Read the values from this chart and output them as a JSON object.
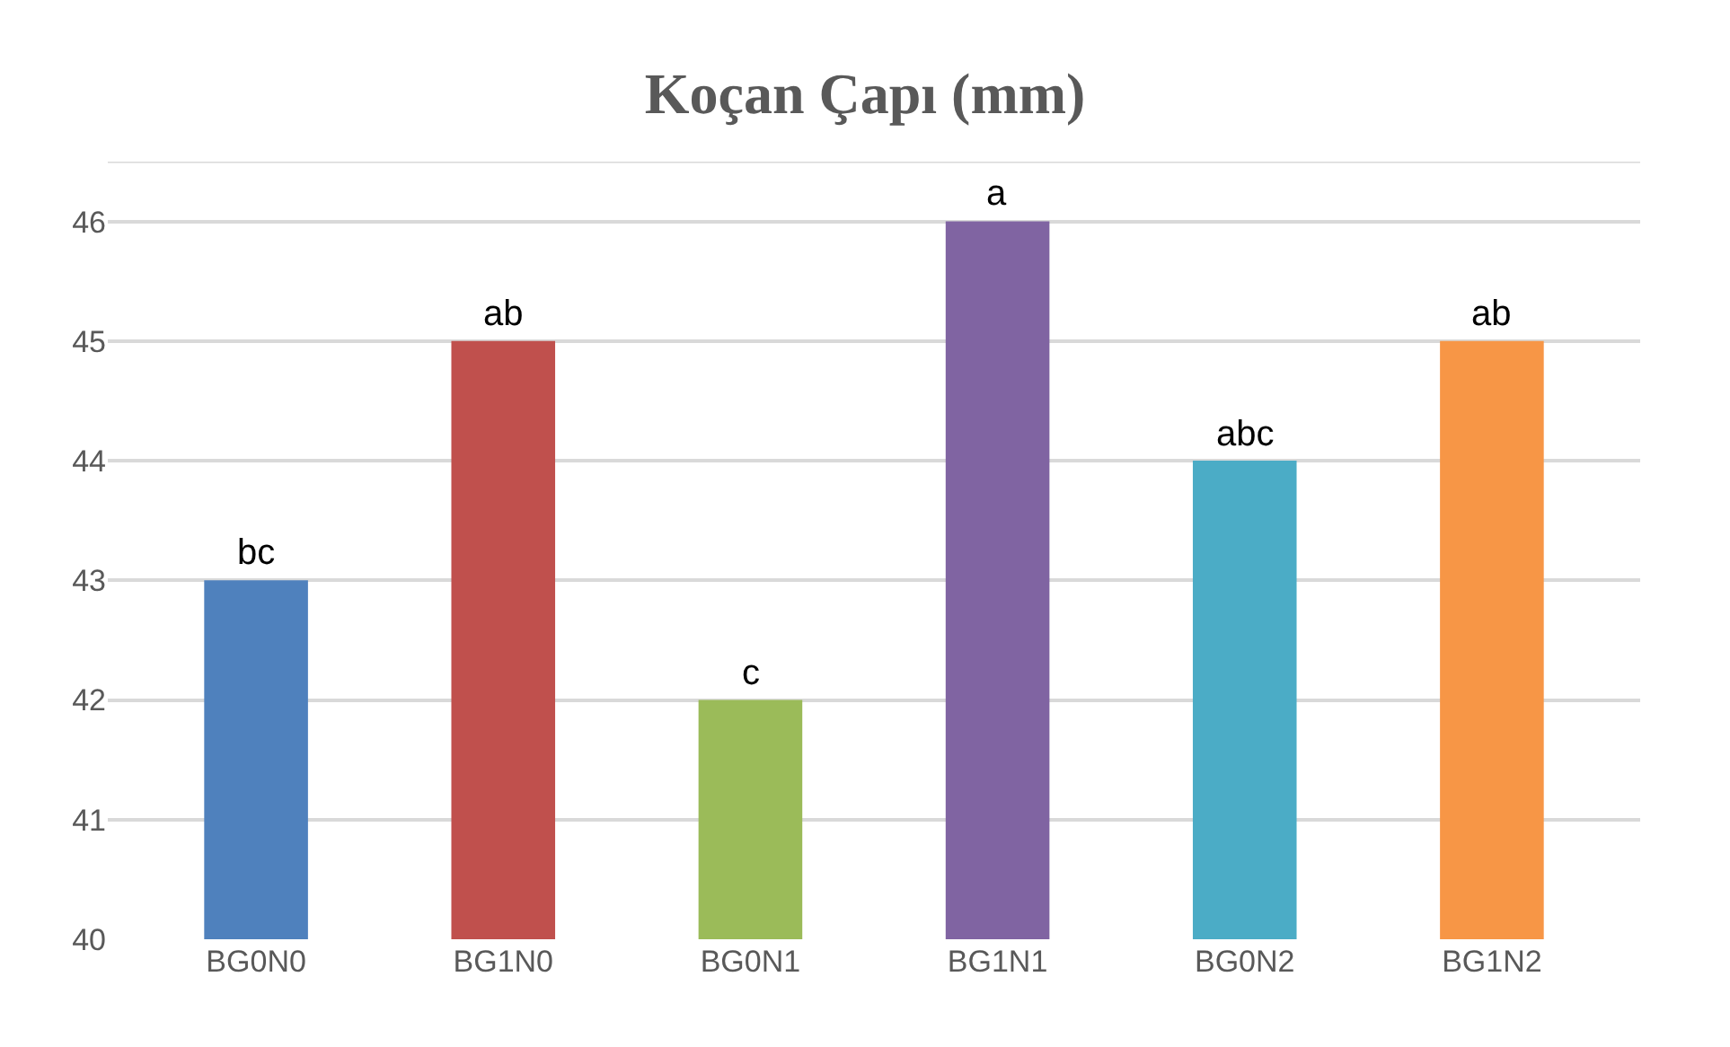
{
  "chart_data": {
    "type": "bar",
    "title": "Koçan Çapı (mm)",
    "categories": [
      "BG0N0",
      "BG1N0",
      "BG0N1",
      "BG1N1",
      "BG0N2",
      "BG1N2"
    ],
    "values": [
      43,
      45,
      42,
      46,
      44,
      45
    ],
    "colors": [
      "#4f81bd",
      "#c0504d",
      "#9bbb59",
      "#8064a2",
      "#4bacc6",
      "#f79646"
    ],
    "ylim": [
      40,
      46.5
    ],
    "yticks": [
      40,
      41,
      42,
      43,
      44,
      45,
      46
    ],
    "grid": "y",
    "legend": false,
    "annotations": [
      {
        "text": "bc",
        "x": "BG0N0",
        "y": 43
      },
      {
        "text": "ab",
        "x": "BG1N0",
        "y": 45
      },
      {
        "text": "c",
        "x": "BG0N1",
        "y": 42
      },
      {
        "text": "a",
        "x": "BG1N1",
        "y": 46
      },
      {
        "text": "abc",
        "x": "BG0N2",
        "y": 44
      },
      {
        "text": "ab",
        "x": "BG1N2",
        "y": 45
      }
    ]
  }
}
